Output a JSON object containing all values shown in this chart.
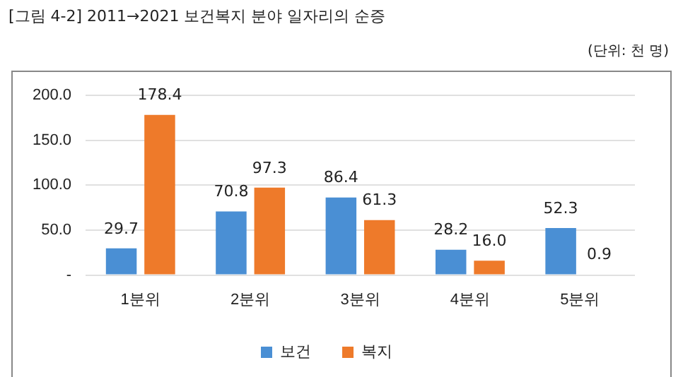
{
  "chart_data": {
    "type": "bar",
    "title": "[그림 4-2] 2011→2021 보건복지 분야 일자리의 순증",
    "annotations": [
      "(단위: 천 명)"
    ],
    "categories": [
      "1분위",
      "2분위",
      "3분위",
      "4분위",
      "5분위"
    ],
    "series": [
      {
        "name": "보건",
        "color": "#4a8fd4",
        "values": [
          29.7,
          70.8,
          86.4,
          28.2,
          52.3
        ],
        "value_labels": [
          "29.7",
          "70.8",
          "86.4",
          "28.2",
          "52.3"
        ]
      },
      {
        "name": "복지",
        "color": "#ee7a2a",
        "values": [
          178.4,
          97.3,
          61.3,
          16.0,
          0.9
        ],
        "value_labels": [
          "178.4",
          "97.3",
          "61.3",
          "16.0",
          "0.9"
        ]
      }
    ],
    "ylim": [
      0,
      200
    ],
    "yticks": [
      {
        "value": 0,
        "label": "-"
      },
      {
        "value": 50,
        "label": "50.0"
      },
      {
        "value": 100,
        "label": "100.0"
      },
      {
        "value": 150,
        "label": "150.0"
      },
      {
        "value": 200,
        "label": "200.0"
      }
    ],
    "grid": "y",
    "legend": "bottom"
  }
}
